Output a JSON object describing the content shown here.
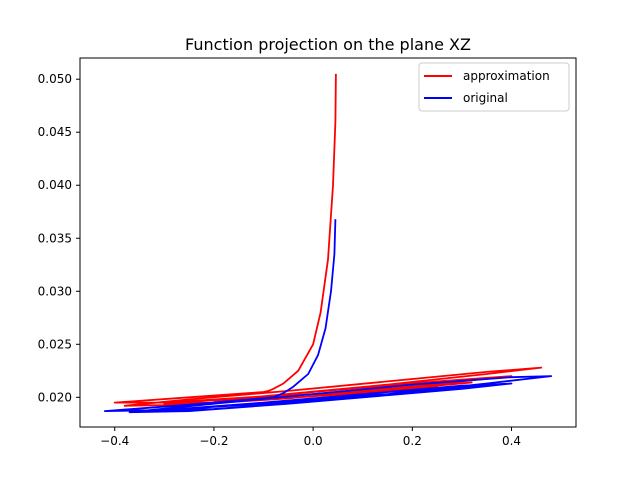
{
  "chart_data": {
    "type": "line",
    "title": "Function projection on the plane XZ",
    "xlabel": "",
    "ylabel": "",
    "xlim": [
      -0.47,
      0.53
    ],
    "ylim": [
      0.0172,
      0.052
    ],
    "xticks": [
      -0.4,
      -0.2,
      0.0,
      0.2,
      0.4
    ],
    "xtick_labels": [
      "−0.4",
      "−0.2",
      "0.0",
      "0.2",
      "0.4"
    ],
    "yticks": [
      0.02,
      0.025,
      0.03,
      0.035,
      0.04,
      0.045,
      0.05
    ],
    "ytick_labels": [
      "0.020",
      "0.025",
      "0.030",
      "0.035",
      "0.040",
      "0.045",
      "0.050"
    ],
    "grid": false,
    "legend_position": "top-right",
    "series": [
      {
        "name": "approximation",
        "color": "#ff0000",
        "x": [
          0.046,
          0.045,
          0.04,
          0.03,
          0.015,
          0.0,
          -0.03,
          -0.06,
          -0.08,
          -0.09,
          -0.1,
          -0.25,
          -0.4,
          -0.3,
          -0.1,
          0.15,
          0.35,
          0.46,
          0.35,
          0.15,
          -0.05,
          -0.25,
          -0.38,
          -0.25,
          -0.05,
          0.15,
          0.3,
          0.4,
          0.25,
          0.05,
          -0.15,
          -0.3,
          -0.2,
          0.0,
          0.2,
          0.32,
          0.2,
          0.0,
          -0.2,
          -0.1,
          0.1,
          0.25,
          0.15,
          0.05
        ],
        "y": [
          0.0505,
          0.046,
          0.04,
          0.033,
          0.028,
          0.025,
          0.0225,
          0.0213,
          0.0208,
          0.0206,
          0.0205,
          0.02,
          0.0195,
          0.0195,
          0.0201,
          0.0212,
          0.0222,
          0.0228,
          0.0224,
          0.0215,
          0.0206,
          0.0198,
          0.0192,
          0.0193,
          0.0199,
          0.0208,
          0.0215,
          0.022,
          0.0215,
          0.0207,
          0.0199,
          0.0194,
          0.0195,
          0.0201,
          0.0209,
          0.0214,
          0.021,
          0.0203,
          0.0197,
          0.0198,
          0.0204,
          0.021,
          0.0208,
          0.0205
        ]
      },
      {
        "name": "original",
        "color": "#0000ff",
        "x": [
          0.045,
          0.043,
          0.036,
          0.025,
          0.01,
          -0.01,
          -0.04,
          -0.06,
          -0.08,
          -0.25,
          -0.42,
          -0.3,
          -0.1,
          0.15,
          0.35,
          0.48,
          0.4,
          0.2,
          0.0,
          -0.2,
          -0.37,
          -0.25,
          -0.05,
          0.15,
          0.3,
          0.4,
          0.3,
          0.1,
          -0.1,
          -0.3,
          -0.2,
          0.0,
          0.2,
          0.36,
          0.25,
          0.05,
          -0.15,
          -0.05,
          0.15,
          0.26,
          0.15,
          0.05
        ],
        "y": [
          0.0368,
          0.0335,
          0.03,
          0.0265,
          0.024,
          0.0222,
          0.021,
          0.0204,
          0.02,
          0.0193,
          0.0187,
          0.0188,
          0.0194,
          0.0203,
          0.0213,
          0.022,
          0.0219,
          0.0212,
          0.0203,
          0.0194,
          0.0186,
          0.0187,
          0.0194,
          0.0202,
          0.0208,
          0.0213,
          0.0211,
          0.0203,
          0.0195,
          0.0188,
          0.0189,
          0.0196,
          0.0204,
          0.0212,
          0.0209,
          0.0201,
          0.0193,
          0.0195,
          0.0203,
          0.0209,
          0.0205,
          0.02
        ]
      }
    ]
  }
}
